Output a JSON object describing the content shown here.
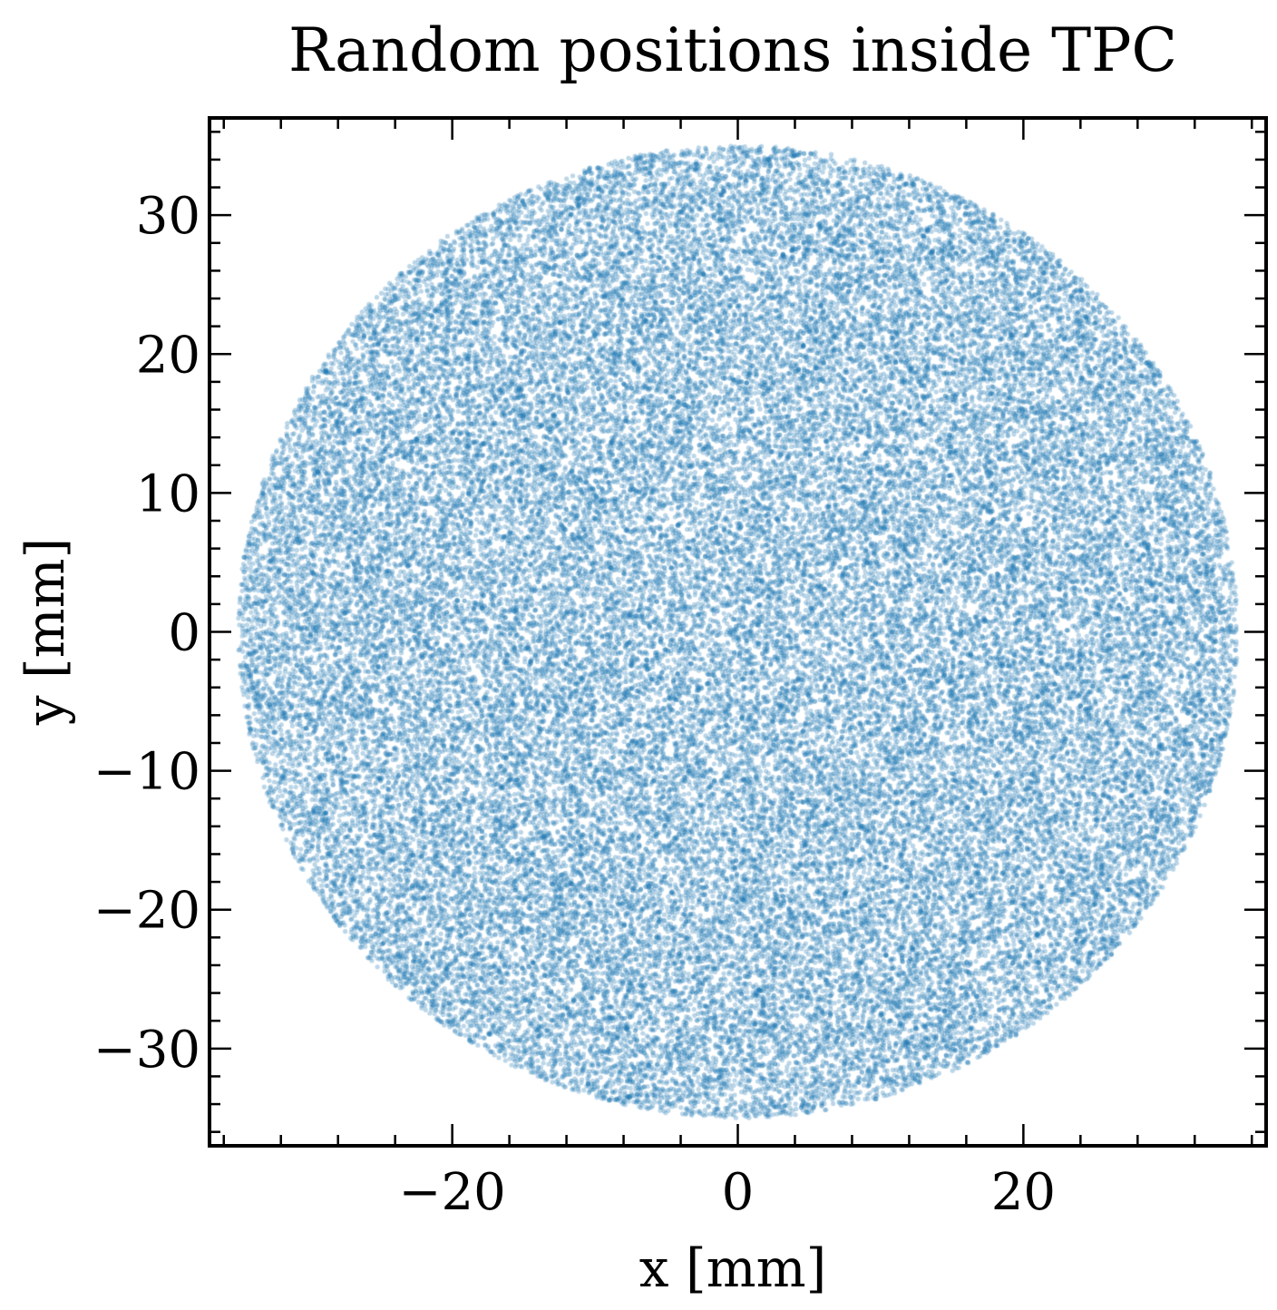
{
  "chart_data": {
    "type": "scatter",
    "title": "Random positions inside TPC",
    "xlabel": "x [mm]",
    "ylabel": "y [mm]",
    "xlim": [
      -37,
      37
    ],
    "ylim": [
      -37,
      37
    ],
    "x_ticks": [
      -20,
      0,
      20
    ],
    "x_tick_labels": [
      "−20",
      "0",
      "20"
    ],
    "y_ticks": [
      30,
      20,
      10,
      0,
      -10,
      -20,
      -30
    ],
    "y_tick_labels": [
      "30",
      "20",
      "10",
      "0",
      "−10",
      "−20",
      "−30"
    ],
    "minor_tick_step": 4,
    "grid": false,
    "series": [
      {
        "distribution": "uniform inside circle",
        "center": [
          0,
          0
        ],
        "radius": 35,
        "point_count": 60000,
        "color": "#1f77b4",
        "alpha": 0.3
      }
    ]
  },
  "colors": {
    "points": "#1f77b4",
    "axes": "#000000",
    "background": "#ffffff"
  }
}
